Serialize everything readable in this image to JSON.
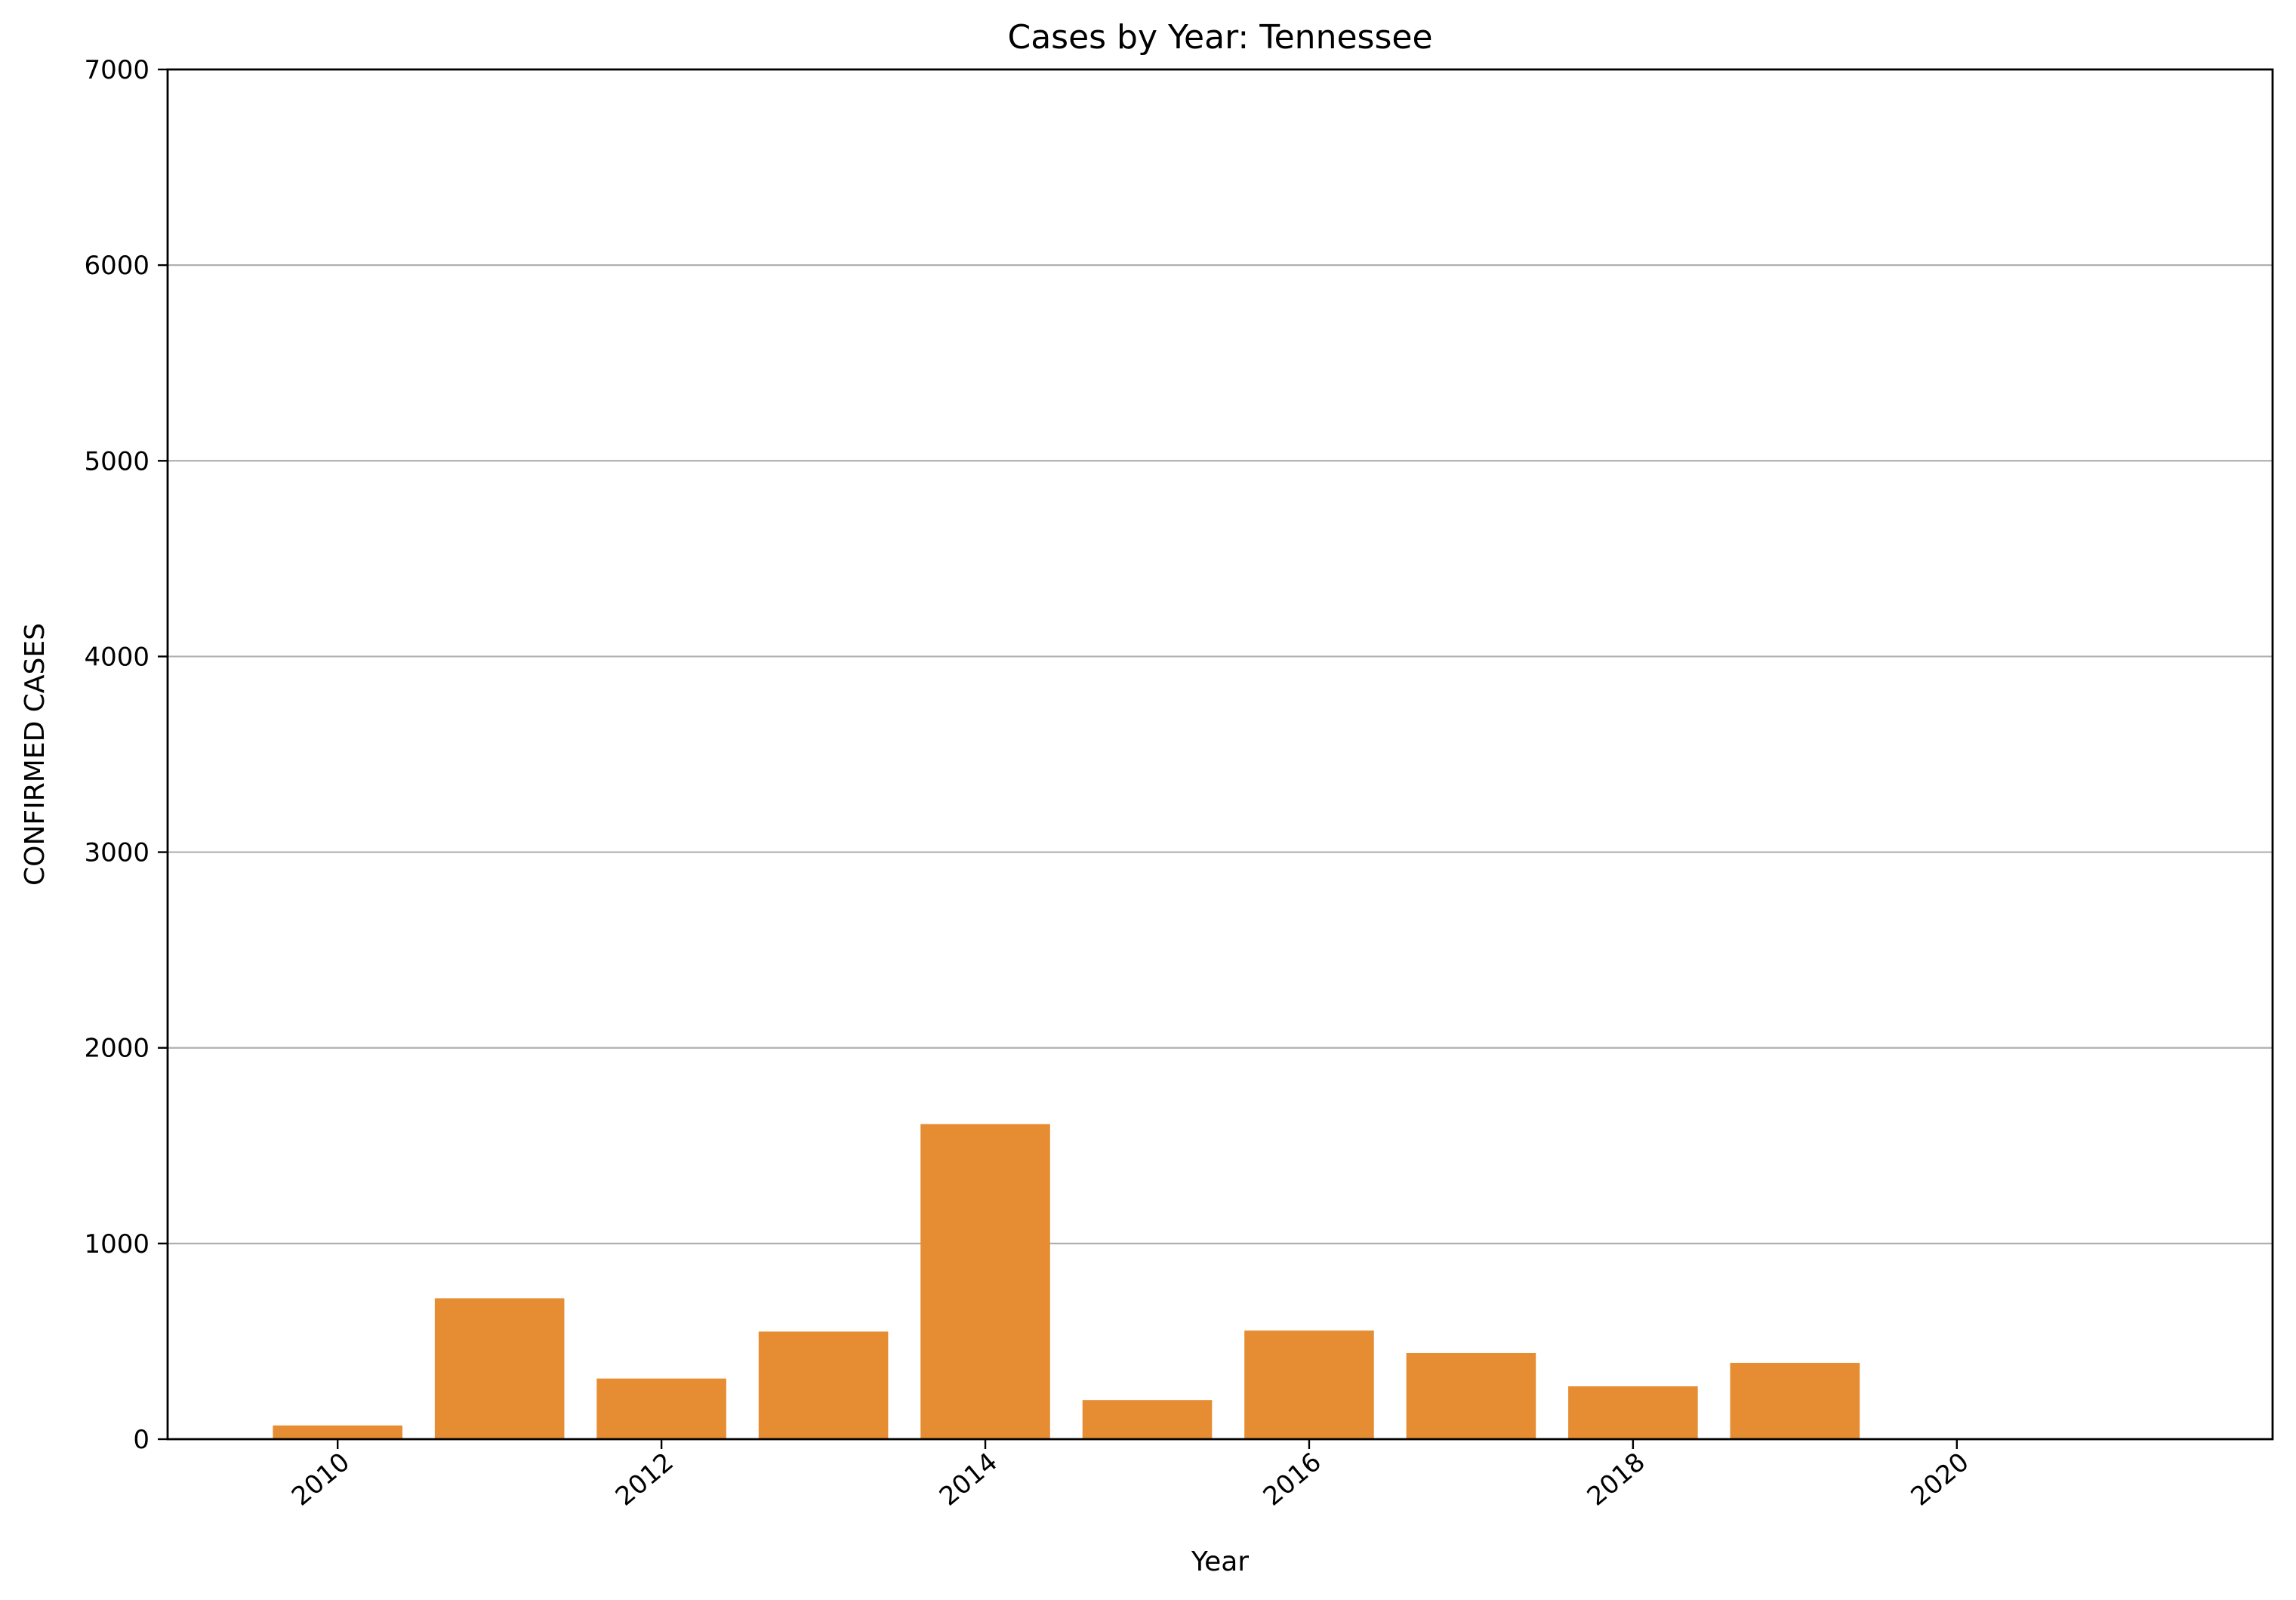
{
  "chart_data": {
    "type": "bar",
    "title": "Cases by Year: Tennessee",
    "xlabel": "Year",
    "ylabel": "CONFIRMED CASES",
    "x": [
      2010,
      2011,
      2012,
      2013,
      2014,
      2015,
      2016,
      2017,
      2018,
      2019,
      2020,
      2021
    ],
    "values": [
      70,
      720,
      310,
      550,
      1610,
      200,
      555,
      440,
      270,
      390,
      0,
      0
    ],
    "xlim": [
      2008.95,
      2021.95
    ],
    "ylim": [
      0,
      7000
    ],
    "xticks": [
      2010,
      2012,
      2014,
      2016,
      2018,
      2020
    ],
    "yticks": [
      0,
      1000,
      2000,
      3000,
      4000,
      5000,
      6000,
      7000
    ],
    "x_tick_rotation_deg": 40,
    "grid": "horizontal",
    "legend": "none",
    "bar_color": "#e68c32"
  }
}
